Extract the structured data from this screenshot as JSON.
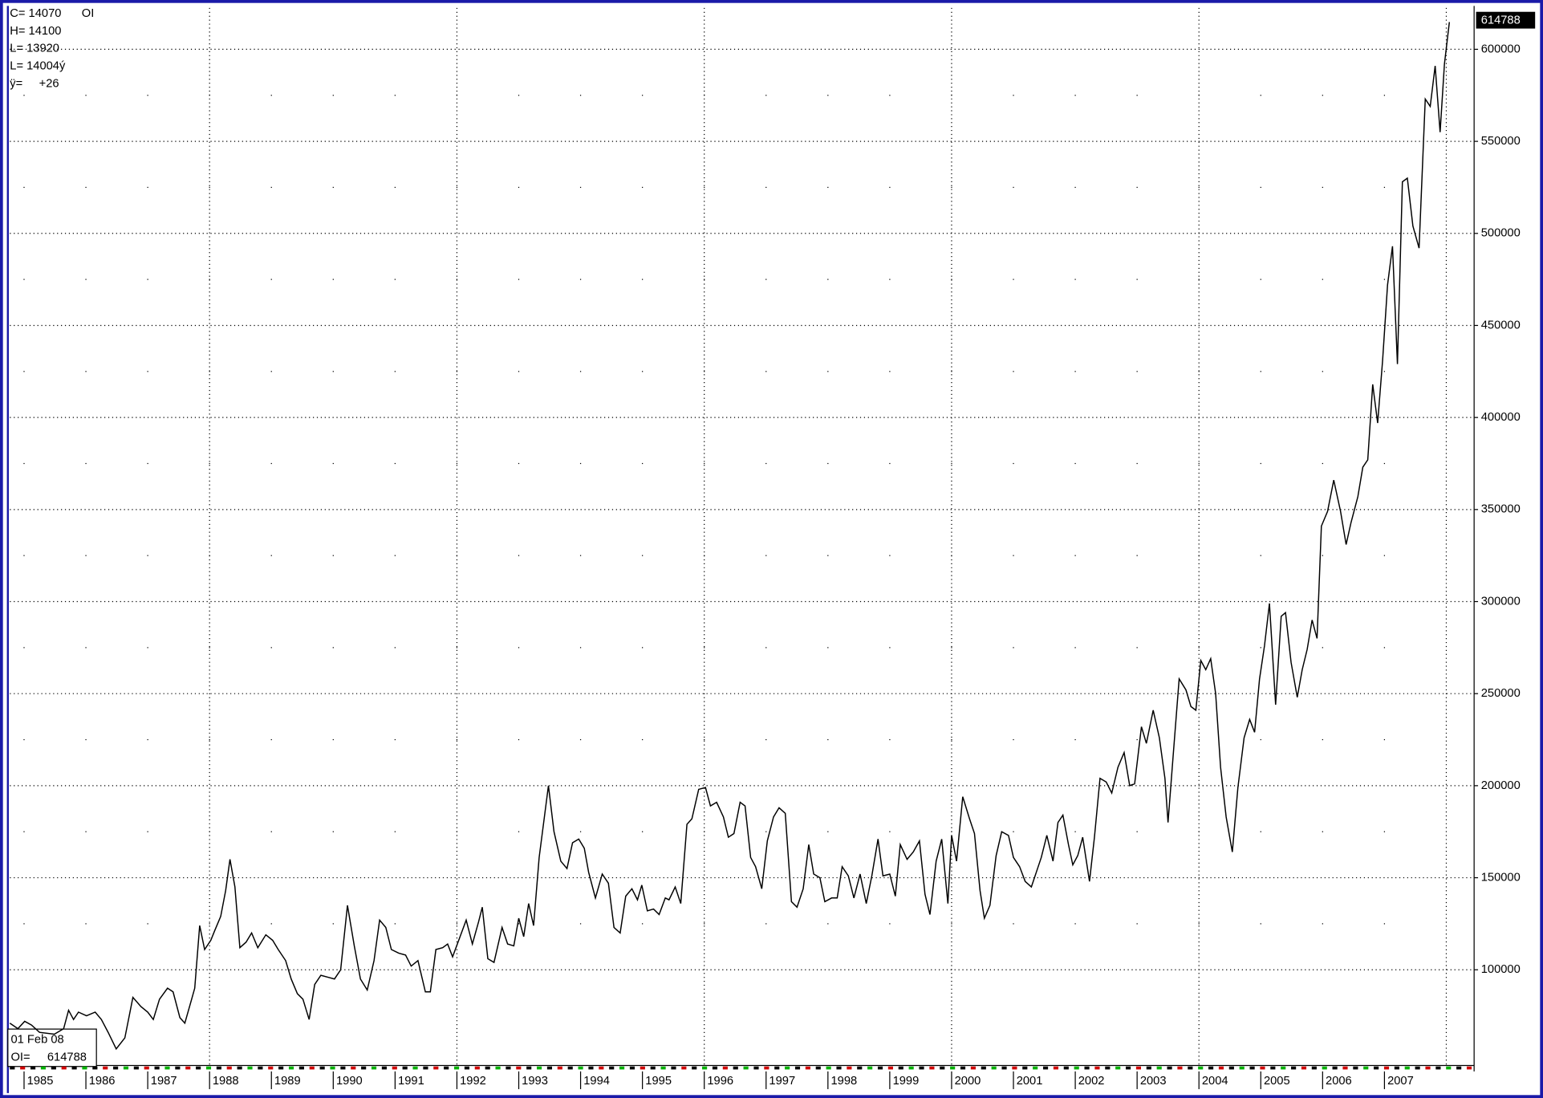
{
  "chart_data": {
    "type": "line",
    "header_lines": [
      "C= 14070",
      "H= 14100",
      "L= 13920",
      "L= 14004ý",
      "ÿ=     +26"
    ],
    "series_label": "OI",
    "info": {
      "date": "01 Feb 08",
      "label": "OI="
    },
    "color": "#000000",
    "grid": true,
    "last_value_box": true,
    "xlim": [
      1984.77,
      2008.45
    ],
    "ylim": [
      48000,
      622500
    ],
    "xticks": [
      1985,
      1986,
      1987,
      1988,
      1989,
      1990,
      1991,
      1992,
      1993,
      1994,
      1995,
      1996,
      1997,
      1998,
      1999,
      2000,
      2001,
      2002,
      2003,
      2004,
      2005,
      2006,
      2007
    ],
    "xgrid": [
      1988,
      1992,
      1996,
      2000,
      2004,
      2008
    ],
    "yticks": [
      100000,
      150000,
      200000,
      250000,
      300000,
      350000,
      400000,
      450000,
      500000,
      550000,
      600000
    ],
    "x": [
      1984.77,
      1984.9,
      1985.01,
      1985.12,
      1985.25,
      1985.49,
      1985.64,
      1985.72,
      1985.8,
      1985.88,
      1986.01,
      1986.15,
      1986.25,
      1986.36,
      1986.49,
      1986.63,
      1986.76,
      1986.89,
      1987.0,
      1987.09,
      1987.19,
      1987.32,
      1987.41,
      1987.52,
      1987.6,
      1987.71,
      1987.76,
      1987.84,
      1987.92,
      1988.02,
      1988.08,
      1988.18,
      1988.26,
      1988.33,
      1988.41,
      1988.49,
      1988.59,
      1988.68,
      1988.78,
      1988.91,
      1989.02,
      1989.11,
      1989.23,
      1989.32,
      1989.42,
      1989.51,
      1989.61,
      1989.7,
      1989.8,
      1989.91,
      1990.02,
      1990.12,
      1990.23,
      1990.34,
      1990.44,
      1990.55,
      1990.66,
      1990.75,
      1990.85,
      1990.94,
      1991.06,
      1991.17,
      1991.26,
      1991.37,
      1991.49,
      1991.57,
      1991.66,
      1991.77,
      1991.85,
      1991.93,
      1992.04,
      1992.15,
      1992.25,
      1992.35,
      1992.41,
      1992.5,
      1992.6,
      1992.73,
      1992.82,
      1992.92,
      1993.0,
      1993.08,
      1993.16,
      1993.24,
      1993.33,
      1993.48,
      1993.57,
      1993.68,
      1993.78,
      1993.87,
      1993.97,
      1994.06,
      1994.13,
      1994.24,
      1994.35,
      1994.45,
      1994.54,
      1994.64,
      1994.73,
      1994.83,
      1994.92,
      1994.99,
      1995.08,
      1995.18,
      1995.27,
      1995.37,
      1995.43,
      1995.53,
      1995.62,
      1995.72,
      1995.8,
      1995.91,
      1996.02,
      1996.1,
      1996.2,
      1996.31,
      1996.39,
      1996.48,
      1996.58,
      1996.66,
      1996.75,
      1996.83,
      1996.93,
      1997.02,
      1997.12,
      1997.21,
      1997.31,
      1997.41,
      1997.5,
      1997.6,
      1997.69,
      1997.77,
      1997.87,
      1997.95,
      1998.06,
      1998.15,
      1998.23,
      1998.33,
      1998.42,
      1998.52,
      1998.62,
      1998.71,
      1998.81,
      1998.89,
      1999.0,
      1999.09,
      1999.17,
      1999.28,
      1999.38,
      1999.48,
      1999.57,
      1999.65,
      1999.75,
      1999.84,
      1999.94,
      2000.0,
      2000.08,
      2000.18,
      2000.29,
      2000.37,
      2000.46,
      2000.53,
      2000.62,
      2000.72,
      2000.81,
      2000.92,
      2001.0,
      2001.1,
      2001.19,
      2001.29,
      2001.37,
      2001.45,
      2001.54,
      2001.64,
      2001.72,
      2001.8,
      2001.89,
      2001.96,
      2002.04,
      2002.12,
      2002.23,
      2002.31,
      2002.4,
      2002.5,
      2002.59,
      2002.69,
      2002.79,
      2002.88,
      2002.96,
      2003.07,
      2003.15,
      2003.26,
      2003.36,
      2003.45,
      2003.5,
      2003.58,
      2003.68,
      2003.79,
      2003.87,
      2003.95,
      2004.03,
      2004.11,
      2004.19,
      2004.27,
      2004.35,
      2004.44,
      2004.54,
      2004.63,
      2004.73,
      2004.82,
      2004.9,
      2004.98,
      2005.06,
      2005.14,
      2005.24,
      2005.33,
      2005.4,
      2005.49,
      2005.59,
      2005.67,
      2005.75,
      2005.83,
      2005.91,
      2005.98,
      2006.08,
      2006.18,
      2006.29,
      2006.38,
      2006.46,
      2006.57,
      2006.65,
      2006.73,
      2006.81,
      2006.89,
      2006.97,
      2007.05,
      2007.13,
      2007.21,
      2007.29,
      2007.37,
      2007.46,
      2007.56,
      2007.66,
      2007.74,
      2007.82,
      2007.9,
      2007.97,
      2008.05
    ],
    "values": [
      71000,
      68000,
      72000,
      70000,
      66000,
      65000,
      68000,
      78000,
      73000,
      77000,
      75000,
      77000,
      73000,
      66000,
      57000,
      63000,
      85000,
      80000,
      77000,
      73000,
      84000,
      90000,
      88000,
      74000,
      71000,
      84000,
      90000,
      124000,
      111000,
      116000,
      121000,
      129000,
      143000,
      160000,
      145000,
      112000,
      115000,
      120000,
      112000,
      119000,
      116000,
      111000,
      105000,
      95000,
      87000,
      84000,
      73000,
      92000,
      97000,
      96000,
      95000,
      100000,
      135000,
      113000,
      95000,
      89000,
      105000,
      127000,
      123000,
      111000,
      109000,
      108000,
      102000,
      105000,
      88000,
      88000,
      111000,
      112000,
      114000,
      107000,
      117000,
      127000,
      114000,
      126000,
      134000,
      106000,
      104000,
      123000,
      114000,
      113000,
      128000,
      118000,
      136000,
      124000,
      161000,
      200000,
      175000,
      159000,
      155000,
      169000,
      171000,
      166000,
      153000,
      139000,
      152000,
      147000,
      123000,
      120000,
      140000,
      144000,
      138000,
      146000,
      132000,
      133000,
      130000,
      139000,
      138000,
      145000,
      136000,
      179000,
      182000,
      198000,
      199000,
      189000,
      191000,
      183000,
      172000,
      174000,
      191000,
      189000,
      161000,
      156000,
      144000,
      170000,
      183000,
      188000,
      185000,
      137000,
      134000,
      144000,
      168000,
      152000,
      150000,
      137000,
      139000,
      139000,
      156000,
      151000,
      139000,
      152000,
      136000,
      151000,
      171000,
      151000,
      152000,
      140000,
      168000,
      160000,
      164000,
      170000,
      141000,
      130000,
      159000,
      171000,
      136000,
      173000,
      159000,
      194000,
      182000,
      174000,
      143000,
      128000,
      135000,
      162000,
      175000,
      173000,
      161000,
      156000,
      148000,
      145000,
      153000,
      161000,
      173000,
      159000,
      180000,
      184000,
      168000,
      157000,
      162000,
      172000,
      148000,
      172000,
      204000,
      202000,
      196000,
      210000,
      218000,
      200000,
      201000,
      232000,
      223000,
      241000,
      226000,
      204000,
      180000,
      215000,
      258000,
      252000,
      243000,
      241000,
      268000,
      263000,
      269000,
      250000,
      210000,
      183000,
      164000,
      199000,
      226000,
      236000,
      229000,
      258000,
      276000,
      299000,
      244000,
      292000,
      294000,
      267000,
      248000,
      263000,
      274000,
      290000,
      280000,
      341000,
      349000,
      366000,
      349000,
      331000,
      343000,
      357000,
      373000,
      377000,
      418000,
      397000,
      431000,
      472000,
      493000,
      429000,
      528000,
      530000,
      504000,
      492000,
      573000,
      569000,
      591000,
      555000,
      592000,
      614788
    ]
  }
}
